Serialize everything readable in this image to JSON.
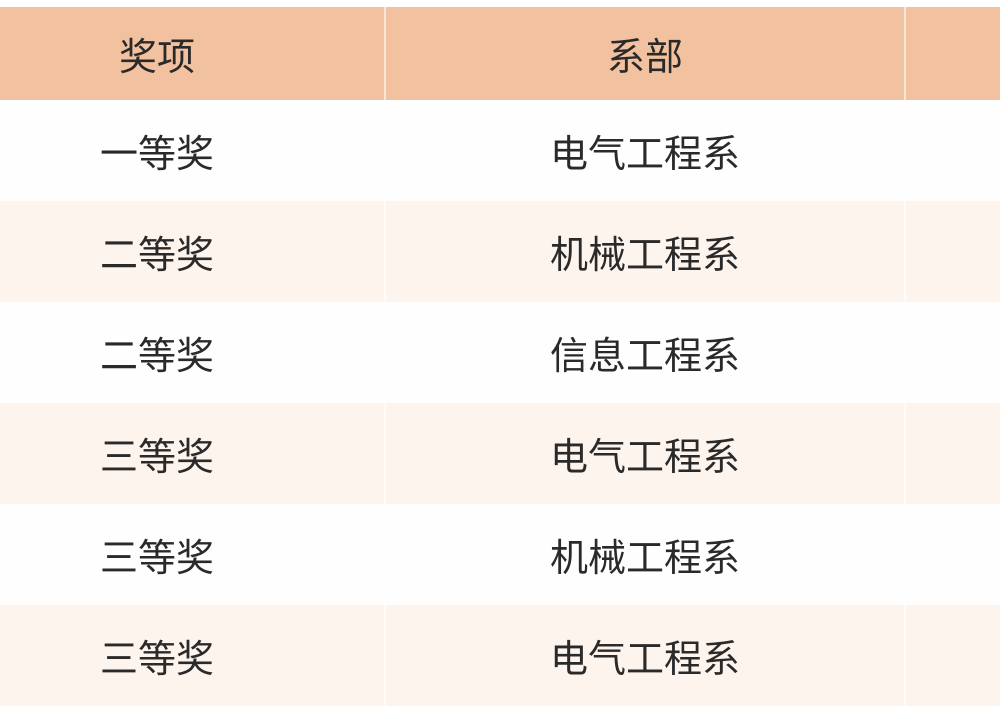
{
  "table": {
    "headers": [
      "奖项",
      "系部",
      ""
    ],
    "rows": [
      {
        "award": "一等奖",
        "department": "电气工程系"
      },
      {
        "award": "二等奖",
        "department": "机械工程系"
      },
      {
        "award": "二等奖",
        "department": "信息工程系"
      },
      {
        "award": "三等奖",
        "department": "电气工程系"
      },
      {
        "award": "三等奖",
        "department": "机械工程系"
      },
      {
        "award": "三等奖",
        "department": "电气工程系"
      }
    ]
  },
  "colors": {
    "header_bg": "#F2C19F",
    "stripe_bg": "#FEF4EE",
    "row_bg": "#FFFEFE"
  }
}
